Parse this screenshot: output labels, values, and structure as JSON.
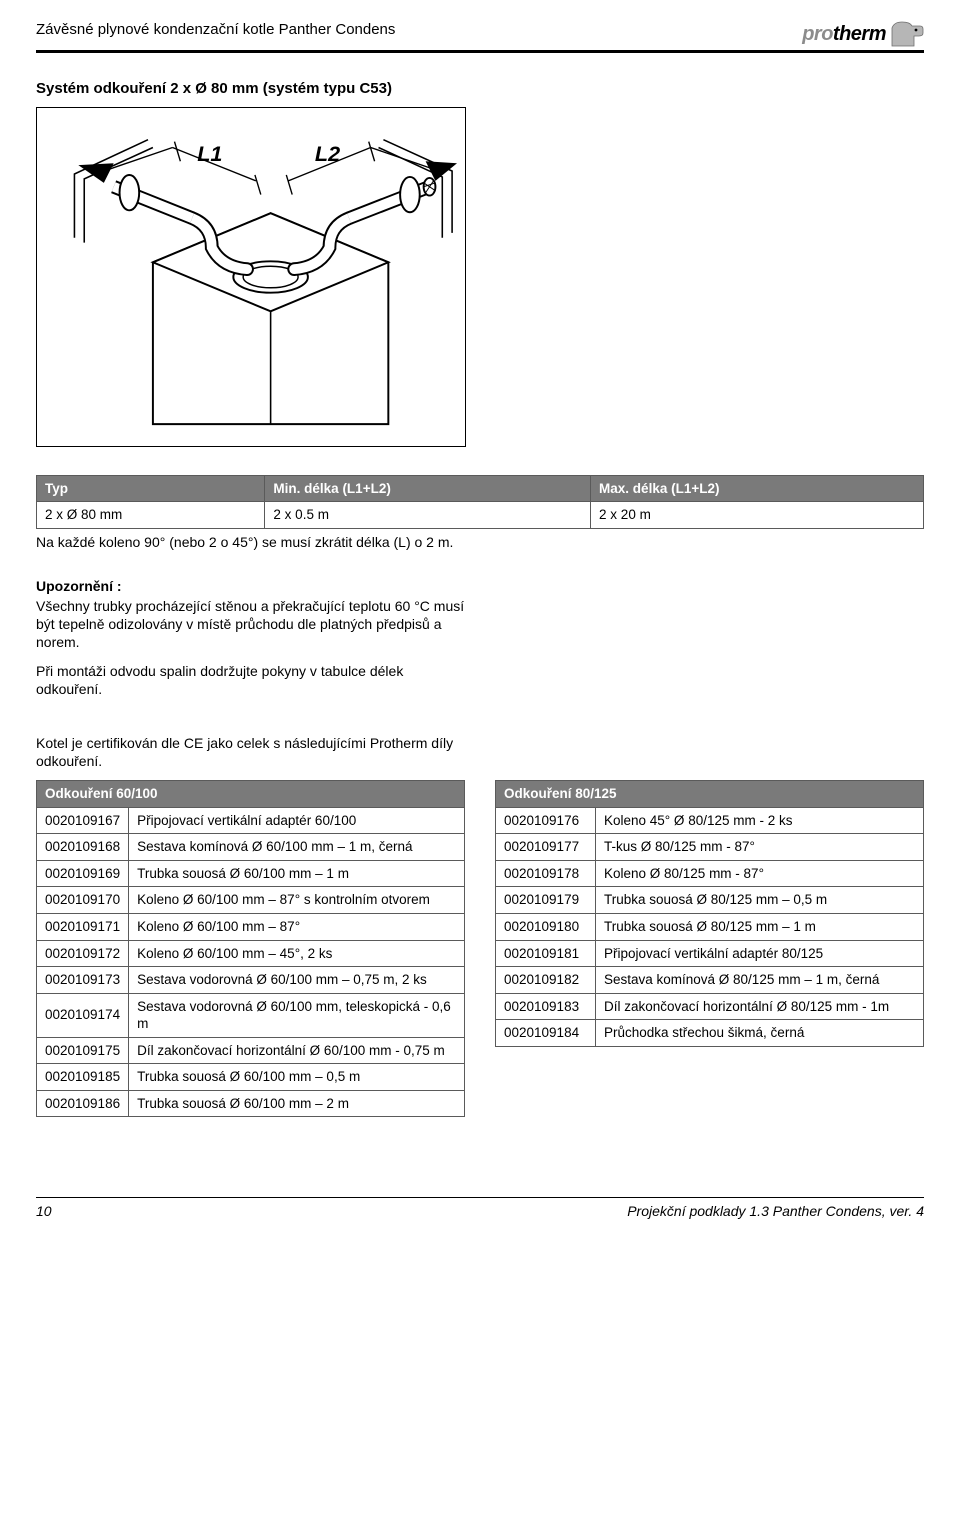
{
  "header": {
    "doc_title": "Závěsné plynové kondenzační kotle Panther Condens",
    "brand_pro": "pro",
    "brand_therm": "therm"
  },
  "section_title": "Systém odkouření 2 x Ø 80 mm (systém typu C53)",
  "figure": {
    "label_L1": "L1",
    "label_L2": "L2",
    "stroke": "#000000",
    "fill": "#ffffff"
  },
  "type_table": {
    "headers": [
      "Typ",
      "Min. délka (L1+L2)",
      "Max. délka (L1+L2)"
    ],
    "row": [
      "2 x Ø 80 mm",
      "2 x 0.5 m",
      "2 x 20 m"
    ]
  },
  "note_text": "Na každé koleno 90° (nebo 2 o 45°) se musí zkrátit délka (L) o 2 m.",
  "upoz": {
    "heading": "Upozornění :",
    "p1": "Všechny trubky procházející stěnou a překračující teplotu 60 °C musí být tepelně odizolovány v místě průchodu dle platných předpisů a norem.",
    "p2": "Při montáži odvodu spalin dodržujte pokyny v tabulce délek odkouření."
  },
  "cert_text": "Kotel je certifikován dle CE jako celek s následujícími Protherm díly odkouření.",
  "table60": {
    "title": "Odkouření 60/100",
    "rows": [
      [
        "0020109167",
        "Připojovací vertikální adaptér 60/100"
      ],
      [
        "0020109168",
        "Sestava komínová Ø 60/100 mm – 1 m, černá"
      ],
      [
        "0020109169",
        "Trubka souosá Ø 60/100 mm – 1 m"
      ],
      [
        "0020109170",
        "Koleno Ø 60/100 mm – 87° s kontrolním otvorem"
      ],
      [
        "0020109171",
        "Koleno Ø 60/100 mm – 87°"
      ],
      [
        "0020109172",
        "Koleno Ø 60/100 mm – 45°, 2 ks"
      ],
      [
        "0020109173",
        "Sestava vodorovná Ø 60/100 mm – 0,75 m, 2 ks"
      ],
      [
        "0020109174",
        "Sestava vodorovná Ø 60/100 mm, teleskopická - 0,6 m"
      ],
      [
        "0020109175",
        "Díl zakončovací horizontální Ø 60/100 mm - 0,75 m"
      ],
      [
        "0020109185",
        "Trubka souosá Ø 60/100 mm – 0,5 m"
      ],
      [
        "0020109186",
        "Trubka souosá Ø 60/100 mm – 2 m"
      ]
    ]
  },
  "table80": {
    "title": "Odkouření 80/125",
    "rows": [
      [
        "0020109176",
        "Koleno 45° Ø 80/125 mm - 2 ks"
      ],
      [
        "0020109177",
        "T-kus Ø 80/125 mm - 87°"
      ],
      [
        "0020109178",
        "Koleno Ø 80/125 mm - 87°"
      ],
      [
        "0020109179",
        "Trubka souosá Ø 80/125 mm – 0,5 m"
      ],
      [
        "0020109180",
        "Trubka souosá Ø 80/125 mm – 1 m"
      ],
      [
        "0020109181",
        "Připojovací vertikální adaptér 80/125"
      ],
      [
        "0020109182",
        "Sestava komínová Ø 80/125 mm – 1 m, černá"
      ],
      [
        "0020109183",
        "Díl zakončovací horizontální Ø 80/125 mm - 1m"
      ],
      [
        "0020109184",
        "Průchodka střechou šikmá, černá"
      ]
    ]
  },
  "footer": {
    "page_num": "10",
    "doc_ref": "Projekční podklady 1.3 Panther Condens, ver. 4"
  },
  "colors": {
    "table_header_bg": "#7a7a7a",
    "table_header_fg": "#ffffff",
    "border": "#5a5a5a"
  }
}
